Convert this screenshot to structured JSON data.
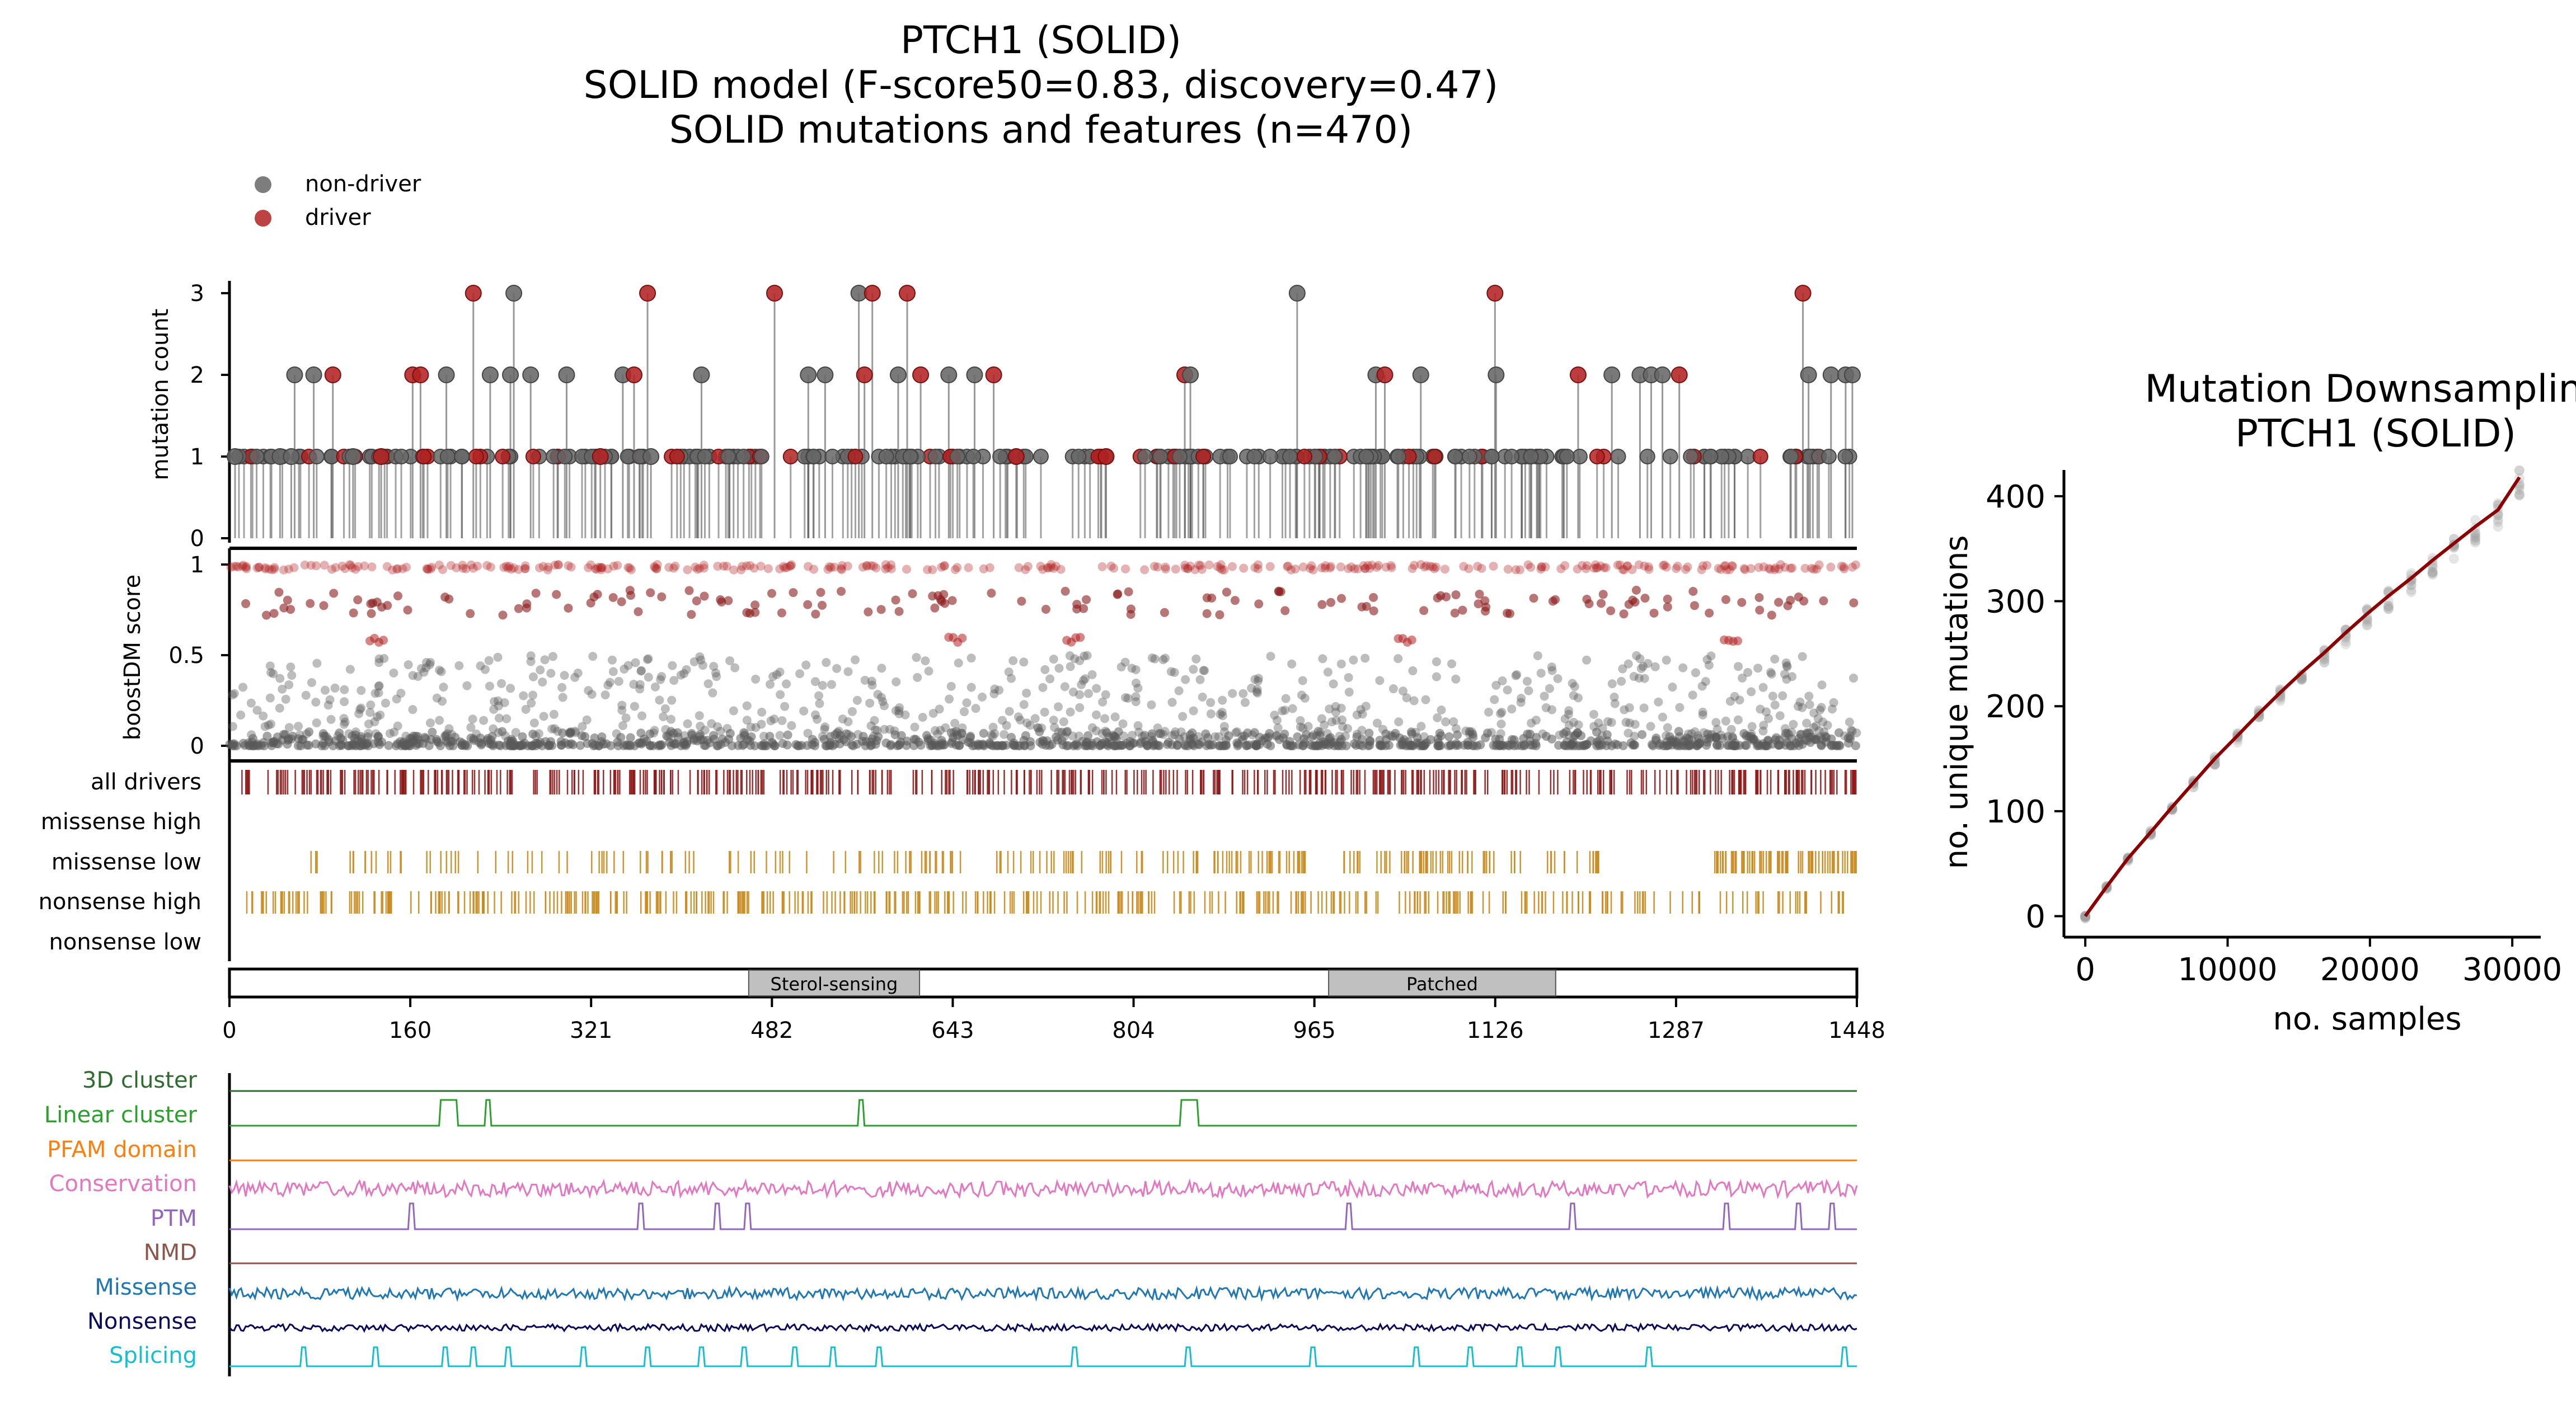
{
  "title": {
    "line1": "PTCH1 (SOLID)",
    "line2": "SOLID model (F-score50=0.83, discovery=0.47)",
    "line3": "SOLID mutations and features (n=470)"
  },
  "legend": {
    "items": [
      {
        "label": "non-driver",
        "color": "#666666"
      },
      {
        "label": "driver",
        "color": "#b22222"
      }
    ]
  },
  "colors": {
    "driver": "#b22222",
    "nondriver": "#666666",
    "track": "#c98a1e",
    "alldrivers": "#8b1a1a"
  },
  "chart_data": [
    {
      "type": "scatter",
      "name": "lollipop",
      "ylabel": "mutation count",
      "ylim": [
        0,
        3
      ],
      "yticks": [
        "0",
        "1",
        "2",
        "3"
      ],
      "points": [
        {
          "x": 5,
          "y": 1,
          "driver": false
        },
        {
          "x": 45,
          "y": 1,
          "driver": false
        },
        {
          "x": 55,
          "y": 1,
          "driver": false
        },
        {
          "x": 58,
          "y": 2,
          "driver": false
        },
        {
          "x": 75,
          "y": 2,
          "driver": false
        },
        {
          "x": 92,
          "y": 2,
          "driver": true
        },
        {
          "x": 110,
          "y": 1,
          "driver": false
        },
        {
          "x": 135,
          "y": 1,
          "driver": true
        },
        {
          "x": 163,
          "y": 2,
          "driver": true
        },
        {
          "x": 170,
          "y": 2,
          "driver": true
        },
        {
          "x": 193,
          "y": 2,
          "driver": false
        },
        {
          "x": 217,
          "y": 3,
          "driver": true
        },
        {
          "x": 232,
          "y": 2,
          "driver": false
        },
        {
          "x": 250,
          "y": 2,
          "driver": false
        },
        {
          "x": 253,
          "y": 3,
          "driver": false
        },
        {
          "x": 268,
          "y": 2,
          "driver": false
        },
        {
          "x": 300,
          "y": 2,
          "driver": false
        },
        {
          "x": 330,
          "y": 1,
          "driver": true
        },
        {
          "x": 350,
          "y": 2,
          "driver": false
        },
        {
          "x": 360,
          "y": 2,
          "driver": true
        },
        {
          "x": 372,
          "y": 3,
          "driver": true
        },
        {
          "x": 375,
          "y": 1,
          "driver": false
        },
        {
          "x": 420,
          "y": 2,
          "driver": false
        },
        {
          "x": 485,
          "y": 3,
          "driver": true
        },
        {
          "x": 515,
          "y": 2,
          "driver": false
        },
        {
          "x": 530,
          "y": 2,
          "driver": false
        },
        {
          "x": 560,
          "y": 3,
          "driver": false
        },
        {
          "x": 565,
          "y": 2,
          "driver": true
        },
        {
          "x": 572,
          "y": 3,
          "driver": true
        },
        {
          "x": 595,
          "y": 2,
          "driver": false
        },
        {
          "x": 603,
          "y": 3,
          "driver": true
        },
        {
          "x": 615,
          "y": 2,
          "driver": true
        },
        {
          "x": 640,
          "y": 2,
          "driver": false
        },
        {
          "x": 663,
          "y": 2,
          "driver": false
        },
        {
          "x": 680,
          "y": 2,
          "driver": true
        },
        {
          "x": 700,
          "y": 1,
          "driver": true
        },
        {
          "x": 780,
          "y": 1,
          "driver": true
        },
        {
          "x": 850,
          "y": 2,
          "driver": true
        },
        {
          "x": 855,
          "y": 2,
          "driver": false
        },
        {
          "x": 950,
          "y": 3,
          "driver": false
        },
        {
          "x": 1020,
          "y": 2,
          "driver": false
        },
        {
          "x": 1028,
          "y": 2,
          "driver": true
        },
        {
          "x": 1060,
          "y": 2,
          "driver": false
        },
        {
          "x": 1126,
          "y": 3,
          "driver": true
        },
        {
          "x": 1127,
          "y": 2,
          "driver": false
        },
        {
          "x": 1200,
          "y": 2,
          "driver": true
        },
        {
          "x": 1230,
          "y": 2,
          "driver": false
        },
        {
          "x": 1255,
          "y": 2,
          "driver": false
        },
        {
          "x": 1265,
          "y": 2,
          "driver": false
        },
        {
          "x": 1275,
          "y": 2,
          "driver": false
        },
        {
          "x": 1290,
          "y": 2,
          "driver": true
        },
        {
          "x": 1400,
          "y": 3,
          "driver": true
        },
        {
          "x": 1405,
          "y": 2,
          "driver": false
        },
        {
          "x": 1425,
          "y": 2,
          "driver": false
        },
        {
          "x": 1438,
          "y": 2,
          "driver": false
        },
        {
          "x": 1444,
          "y": 2,
          "driver": false
        }
      ]
    },
    {
      "type": "scatter",
      "name": "boostdm",
      "ylabel": "boostDM score",
      "ylim": [
        0,
        1
      ],
      "yticks": [
        "0",
        "0.5",
        "1"
      ]
    },
    {
      "type": "table",
      "name": "tracks",
      "rows": [
        "all drivers",
        "missense high",
        "missense low",
        "nonsense high",
        "nonsense low"
      ]
    },
    {
      "type": "bar",
      "name": "domains",
      "xlim": [
        0,
        1448
      ],
      "xticks": [
        "0",
        "160",
        "321",
        "482",
        "643",
        "804",
        "965",
        "1126",
        "1287",
        "1448"
      ],
      "domains": [
        {
          "label": "Sterol-sensing",
          "start": 462,
          "end": 614
        },
        {
          "label": "Patched",
          "start": 978,
          "end": 1180
        }
      ]
    },
    {
      "type": "line",
      "name": "features",
      "series": [
        {
          "name": "3D cluster",
          "color": "#2e6b2e"
        },
        {
          "name": "Linear cluster",
          "color": "#2ca02c",
          "peaks": [
            195,
            230,
            562,
            854
          ]
        },
        {
          "name": "PFAM domain",
          "color": "#ff7f0e"
        },
        {
          "name": "Conservation",
          "color": "#e377c2"
        },
        {
          "name": "PTM",
          "color": "#9467bd",
          "peaks": [
            162,
            366,
            434,
            461,
            996,
            1195,
            1332,
            1396,
            1426
          ]
        },
        {
          "name": "NMD",
          "color": "#8c564b"
        },
        {
          "name": "Missense",
          "color": "#1f77b4"
        },
        {
          "name": "Nonsense",
          "color": "#0a0a5a"
        },
        {
          "name": "Splicing",
          "color": "#17becf",
          "peaks": [
            66,
            130,
            192,
            217,
            248,
            315,
            372,
            420,
            458,
            503,
            537,
            578,
            752,
            853,
            964,
            1056,
            1104,
            1148,
            1182,
            1263,
            1437
          ]
        }
      ]
    },
    {
      "type": "line",
      "name": "downsampling",
      "title": "Mutation Downsampling",
      "subtitle": "PTCH1 (SOLID)",
      "xlabel": "no. samples",
      "ylabel": "no. unique mutations",
      "xlim": [
        -1500,
        32000
      ],
      "ylim": [
        -20,
        425
      ],
      "xticks": [
        0,
        10000,
        20000,
        30000
      ],
      "yticks": [
        0,
        100,
        200,
        300,
        400
      ],
      "x": [
        0,
        1500,
        3000,
        4600,
        6100,
        7600,
        9100,
        10700,
        12200,
        13700,
        15200,
        16800,
        18300,
        19800,
        21300,
        22900,
        24400,
        25900,
        27400,
        29000,
        30500
      ],
      "y": [
        0,
        28,
        55,
        80,
        104,
        127,
        150,
        172,
        193,
        213,
        232,
        251,
        270,
        288,
        305,
        322,
        339,
        355,
        371,
        387,
        418
      ],
      "color": "#8b0000"
    }
  ]
}
